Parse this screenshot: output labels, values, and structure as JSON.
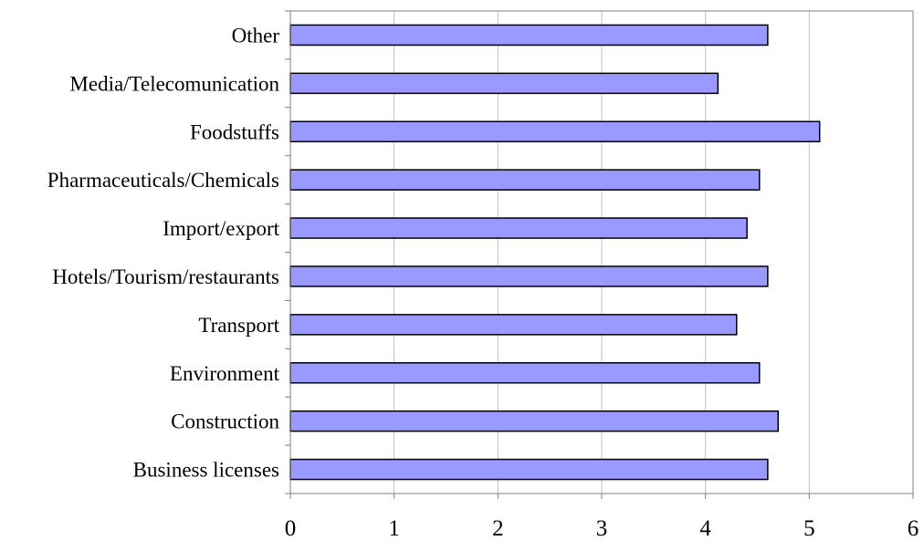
{
  "chart_data": {
    "type": "bar",
    "orientation": "horizontal",
    "categories": [
      "Business licenses",
      "Construction",
      "Environment",
      "Transport",
      "Hotels/Tourism/restaurants",
      "Import/export",
      "Pharmaceuticals/Chemicals",
      "Foodstuffs",
      "Media/Telecomunication",
      "Other"
    ],
    "values": [
      4.6,
      4.7,
      4.52,
      4.3,
      4.6,
      4.4,
      4.52,
      5.1,
      4.12,
      4.6
    ],
    "xlim": [
      0,
      6
    ],
    "x_ticks": [
      0,
      1,
      2,
      3,
      4,
      5,
      6
    ],
    "x_tick_labels": [
      "0",
      "1",
      "2",
      "3",
      "4",
      "5",
      "6"
    ],
    "title": "",
    "xlabel": "",
    "ylabel": "",
    "grid": "vertical gridlines at each major x tick",
    "legend": "none",
    "colors": {
      "bar_fill": "#9999FF",
      "bar_stroke": "#000000",
      "grid": "#C0C0C0",
      "axis": "#808080",
      "plot_border": "#808080",
      "text": "#000000"
    }
  }
}
